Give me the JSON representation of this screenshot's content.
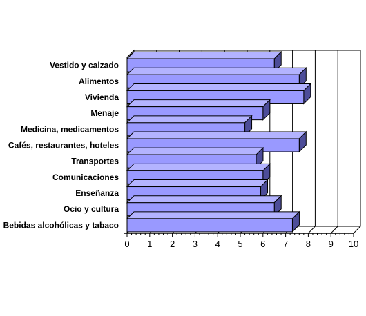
{
  "chart_data": {
    "type": "bar",
    "orientation": "horizontal",
    "style": "3d",
    "categories": [
      "Vestido y calzado",
      "Alimentos",
      "Vivienda",
      "Menaje",
      "Medicina, medicamentos",
      "Cafés, restaurantes, hoteles",
      "Transportes",
      "Comunicaciones",
      "Enseñanza",
      "Ocio y cultura",
      "Bebidas alcohólicas y tabaco"
    ],
    "values": [
      6.5,
      7.6,
      7.8,
      6.0,
      5.2,
      7.6,
      5.7,
      6.0,
      5.9,
      6.5,
      7.3
    ],
    "xlim": [
      0,
      10
    ],
    "xticks": [
      "0",
      "1",
      "2",
      "3",
      "4",
      "5",
      "6",
      "7",
      "8",
      "9",
      "10"
    ],
    "grid": true,
    "legend": "none",
    "colors": {
      "bar_front": "#9999ff",
      "bar_top": "#b3b3ff",
      "bar_side": "#4d4d99",
      "wall": "#ffffff",
      "floor_side": "#808080"
    }
  }
}
